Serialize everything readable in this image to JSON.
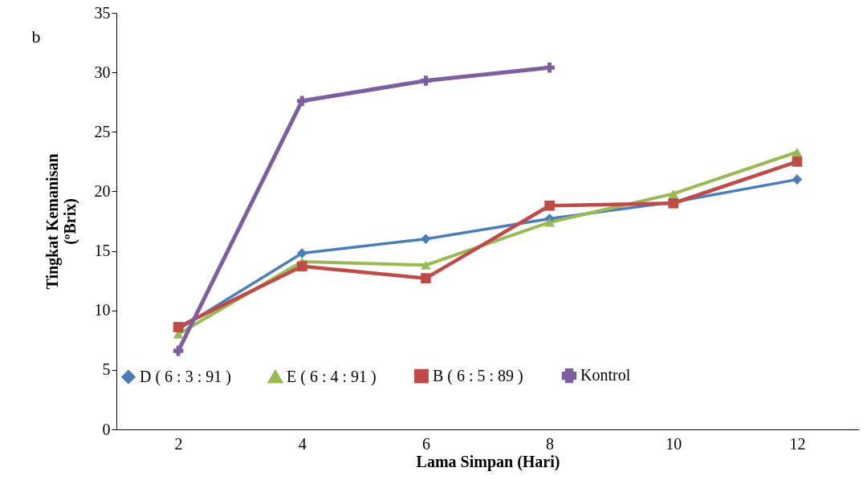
{
  "chart_data": {
    "type": "line",
    "xlabel": "Lama Simpan (Hari)",
    "ylabel": "Tingkat Kemanisan\n(ºBrix)",
    "annotations": [
      "b"
    ],
    "categories": [
      "2",
      "4",
      "6",
      "8",
      "10",
      "12"
    ],
    "ylim": [
      0,
      35
    ],
    "yticks": [
      0,
      5,
      10,
      15,
      20,
      25,
      30,
      35
    ],
    "grid": false,
    "legend": "bottom",
    "series": [
      {
        "name": "D ( 6 : 3 : 91 )",
        "color": "#4a7ebb",
        "marker": "diamond",
        "values": [
          8.4,
          14.8,
          16.0,
          17.7,
          19.1,
          21.0
        ]
      },
      {
        "name": "E ( 6 : 4 : 91 )",
        "color": "#98b954",
        "marker": "triangle",
        "values": [
          8.0,
          14.1,
          13.8,
          17.4,
          19.8,
          23.3
        ]
      },
      {
        "name": "B ( 6 : 5 : 89 )",
        "color": "#be4b48",
        "marker": "square",
        "values": [
          8.6,
          13.7,
          12.7,
          18.8,
          19.0,
          22.5
        ]
      },
      {
        "name": "Kontrol",
        "color": "#7d5fa0",
        "marker": "cross",
        "values": [
          6.6,
          27.6,
          29.3,
          30.4,
          null,
          null
        ]
      }
    ]
  }
}
